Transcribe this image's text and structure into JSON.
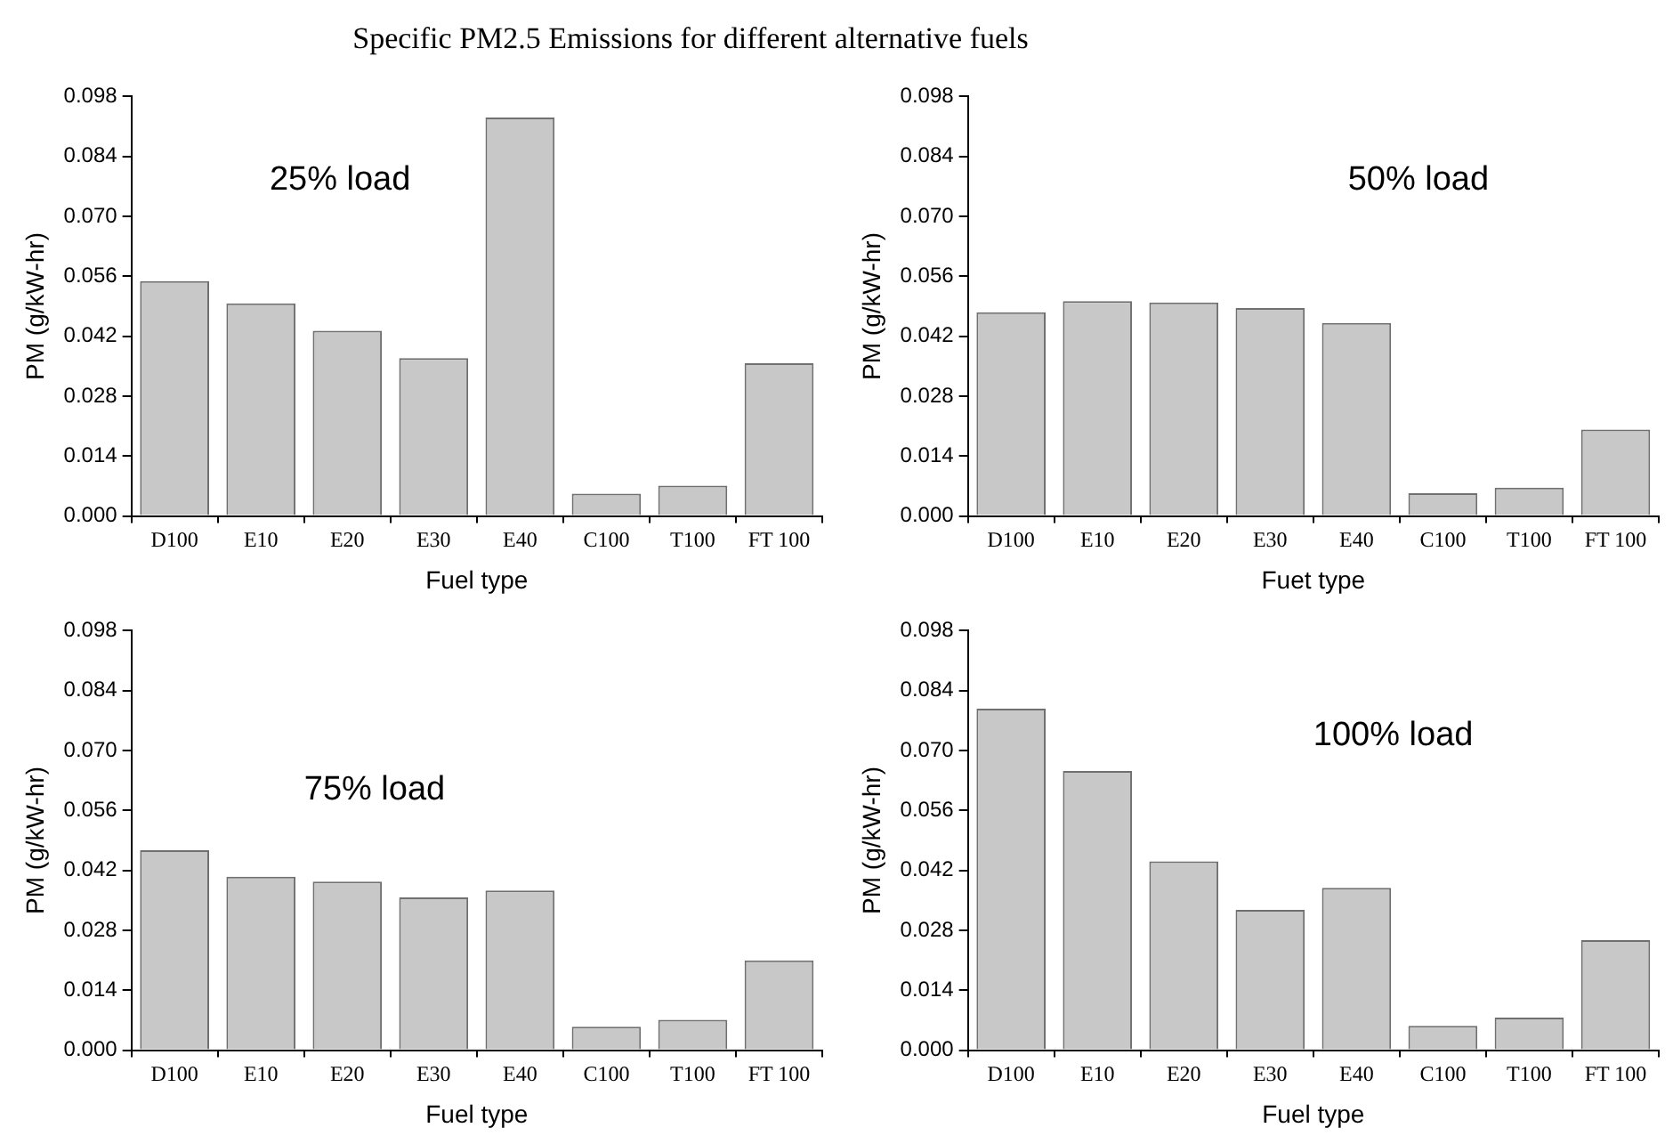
{
  "chart_data": [
    {
      "type": "bar",
      "title": "Specific PM2.5 Emissions for different alternative fuels",
      "xlabel": "Fuel type",
      "ylabel": "PM (g/kW-hr)",
      "annotations": [
        "25% load"
      ],
      "categories": [
        "D100",
        "E10",
        "E20",
        "E30",
        "E40",
        "C100",
        "T100",
        "FT 100"
      ],
      "values": [
        0.0549,
        0.0497,
        0.0433,
        0.0369,
        0.0931,
        0.0052,
        0.0071,
        0.0357
      ],
      "color": "#c8c8c8",
      "ylim": [
        0,
        0.098
      ],
      "yticks": [
        {
          "value": 0,
          "label": "0.000"
        },
        {
          "value": 0.014,
          "label": "0.014"
        },
        {
          "value": 0.028,
          "label": "0.028"
        },
        {
          "value": 0.042,
          "label": "0.042"
        },
        {
          "value": 0.056,
          "label": "0.056"
        },
        {
          "value": 0.07,
          "label": "0.070"
        },
        {
          "value": 0.084,
          "label": "0.084"
        },
        {
          "value": 0.098,
          "label": "0.098"
        }
      ],
      "grid": false,
      "legend": false
    },
    {
      "type": "bar",
      "xlabel": "Fuet type",
      "ylabel": "PM (g/kW-hr)",
      "annotations": [
        "50% load"
      ],
      "categories": [
        "D100",
        "E10",
        "E20",
        "E30",
        "E40",
        "C100",
        "T100",
        "FT 100"
      ],
      "values": [
        0.0476,
        0.0502,
        0.0499,
        0.0486,
        0.0451,
        0.0053,
        0.0066,
        0.0202
      ],
      "color": "#c8c8c8",
      "ylim": [
        0,
        0.098
      ],
      "yticks": [
        {
          "value": 0,
          "label": "0.000"
        },
        {
          "value": 0.014,
          "label": "0.014"
        },
        {
          "value": 0.028,
          "label": "0.028"
        },
        {
          "value": 0.042,
          "label": "0.042"
        },
        {
          "value": 0.056,
          "label": "0.056"
        },
        {
          "value": 0.07,
          "label": "0.070"
        },
        {
          "value": 0.084,
          "label": "0.084"
        },
        {
          "value": 0.098,
          "label": "0.098"
        }
      ],
      "grid": false,
      "legend": false
    },
    {
      "type": "bar",
      "xlabel": "Fuel type",
      "ylabel": "PM (g/kW-hr)",
      "annotations": [
        "75% load"
      ],
      "categories": [
        "D100",
        "E10",
        "E20",
        "E30",
        "E40",
        "C100",
        "T100",
        "FT 100"
      ],
      "values": [
        0.0467,
        0.0405,
        0.0394,
        0.0357,
        0.0373,
        0.0055,
        0.0071,
        0.021
      ],
      "color": "#c8c8c8",
      "ylim": [
        0,
        0.098
      ],
      "yticks": [
        {
          "value": 0,
          "label": "0.000"
        },
        {
          "value": 0.014,
          "label": "0.014"
        },
        {
          "value": 0.028,
          "label": "0.028"
        },
        {
          "value": 0.042,
          "label": "0.042"
        },
        {
          "value": 0.056,
          "label": "0.056"
        },
        {
          "value": 0.07,
          "label": "0.070"
        },
        {
          "value": 0.084,
          "label": "0.084"
        },
        {
          "value": 0.098,
          "label": "0.098"
        }
      ],
      "grid": false,
      "legend": false
    },
    {
      "type": "bar",
      "xlabel": "Fuel type",
      "ylabel": "PM (g/kW-hr)",
      "annotations": [
        "100% load"
      ],
      "categories": [
        "D100",
        "E10",
        "E20",
        "E30",
        "E40",
        "C100",
        "T100",
        "FT 100"
      ],
      "values": [
        0.0798,
        0.0652,
        0.0441,
        0.0328,
        0.0379,
        0.0057,
        0.0076,
        0.0257
      ],
      "color": "#c8c8c8",
      "ylim": [
        0,
        0.098
      ],
      "yticks": [
        {
          "value": 0,
          "label": "0.000"
        },
        {
          "value": 0.014,
          "label": "0.014"
        },
        {
          "value": 0.028,
          "label": "0.028"
        },
        {
          "value": 0.042,
          "label": "0.042"
        },
        {
          "value": 0.056,
          "label": "0.056"
        },
        {
          "value": 0.07,
          "label": "0.070"
        },
        {
          "value": 0.084,
          "label": "0.084"
        },
        {
          "value": 0.098,
          "label": "0.098"
        }
      ],
      "grid": false,
      "legend": false
    }
  ]
}
